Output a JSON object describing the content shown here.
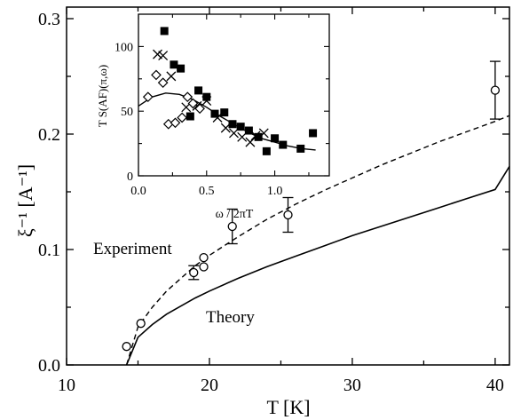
{
  "chart_data": [
    {
      "type": "line",
      "xlabel": "T [K]",
      "ylabel": "ξ⁻¹  [A⁻¹]",
      "xlim": [
        10,
        41
      ],
      "ylim": [
        0,
        0.31
      ],
      "x_ticks": [
        "10",
        "20",
        "30",
        "40"
      ],
      "y_ticks": [
        "0.0",
        "0.1",
        "0.2",
        "0.3"
      ],
      "annotations": [
        "Experiment",
        "Theory"
      ],
      "experiment_points": [
        {
          "x": 14.2,
          "y": 0.016,
          "err": 0
        },
        {
          "x": 15.2,
          "y": 0.036,
          "err": 0
        },
        {
          "x": 18.9,
          "y": 0.08,
          "err": 0.006
        },
        {
          "x": 19.6,
          "y": 0.085,
          "err": 0
        },
        {
          "x": 19.6,
          "y": 0.093,
          "err": 0
        },
        {
          "x": 21.6,
          "y": 0.12,
          "err": 0.015
        },
        {
          "x": 25.5,
          "y": 0.13,
          "err": 0.015
        },
        {
          "x": 40.0,
          "y": 0.238,
          "err": 0.025
        }
      ],
      "experiment_fit": {
        "style": "dashed",
        "x": [
          14.2,
          15,
          16,
          17,
          18,
          19,
          20,
          22,
          24,
          26,
          28,
          30,
          32,
          34,
          36,
          38,
          40,
          41
        ],
        "y": [
          0.0,
          0.033,
          0.05,
          0.064,
          0.075,
          0.086,
          0.095,
          0.111,
          0.126,
          0.139,
          0.151,
          0.162,
          0.173,
          0.183,
          0.193,
          0.202,
          0.211,
          0.216
        ]
      },
      "theory_curve": {
        "style": "solid",
        "x": [
          14.2,
          15,
          16,
          17,
          18,
          19,
          20,
          22,
          24,
          26,
          28,
          30,
          32,
          34,
          36,
          38,
          40,
          41
        ],
        "y": [
          0.0,
          0.024,
          0.035,
          0.044,
          0.051,
          0.058,
          0.064,
          0.075,
          0.085,
          0.094,
          0.103,
          0.112,
          0.12,
          0.128,
          0.136,
          0.144,
          0.152,
          0.172
        ]
      }
    },
    {
      "type": "scatter",
      "xlabel": "ω / 2πT",
      "ylabel": "T S(AF)(π,ω)",
      "xlim": [
        0,
        1.4
      ],
      "ylim": [
        0,
        125
      ],
      "x_ticks": [
        "0.0",
        "0.5",
        "1.0"
      ],
      "y_ticks": [
        "0",
        "50",
        "100"
      ],
      "squares": [
        {
          "x": 0.19,
          "y": 112
        },
        {
          "x": 0.26,
          "y": 86
        },
        {
          "x": 0.31,
          "y": 83
        },
        {
          "x": 0.38,
          "y": 46
        },
        {
          "x": 0.44,
          "y": 66
        },
        {
          "x": 0.5,
          "y": 61
        },
        {
          "x": 0.56,
          "y": 48
        },
        {
          "x": 0.63,
          "y": 49
        },
        {
          "x": 0.69,
          "y": 40
        },
        {
          "x": 0.75,
          "y": 38
        },
        {
          "x": 0.81,
          "y": 35
        },
        {
          "x": 0.88,
          "y": 30
        },
        {
          "x": 0.94,
          "y": 19
        },
        {
          "x": 1.0,
          "y": 29
        },
        {
          "x": 1.06,
          "y": 24
        },
        {
          "x": 1.19,
          "y": 21
        },
        {
          "x": 1.28,
          "y": 33
        }
      ],
      "crosses": [
        {
          "x": 0.14,
          "y": 94
        },
        {
          "x": 0.18,
          "y": 93
        },
        {
          "x": 0.24,
          "y": 77
        },
        {
          "x": 0.35,
          "y": 53
        },
        {
          "x": 0.43,
          "y": 54
        },
        {
          "x": 0.5,
          "y": 58
        },
        {
          "x": 0.58,
          "y": 45
        },
        {
          "x": 0.64,
          "y": 37
        },
        {
          "x": 0.7,
          "y": 33
        },
        {
          "x": 0.76,
          "y": 30
        },
        {
          "x": 0.82,
          "y": 26
        },
        {
          "x": 0.86,
          "y": 31
        },
        {
          "x": 0.92,
          "y": 33
        }
      ],
      "diamonds": [
        {
          "x": 0.07,
          "y": 61
        },
        {
          "x": 0.13,
          "y": 78
        },
        {
          "x": 0.18,
          "y": 72
        },
        {
          "x": 0.22,
          "y": 40
        },
        {
          "x": 0.27,
          "y": 41
        },
        {
          "x": 0.32,
          "y": 45
        },
        {
          "x": 0.36,
          "y": 61
        },
        {
          "x": 0.4,
          "y": 56
        },
        {
          "x": 0.45,
          "y": 52
        }
      ],
      "fit_curve": {
        "x": [
          0.0,
          0.1,
          0.2,
          0.3,
          0.4,
          0.5,
          0.6,
          0.7,
          0.8,
          0.9,
          1.0,
          1.1,
          1.2,
          1.3
        ],
        "y": [
          54,
          61,
          64,
          63,
          59,
          53,
          46,
          40,
          34,
          29,
          26,
          23,
          21,
          20
        ]
      }
    }
  ]
}
